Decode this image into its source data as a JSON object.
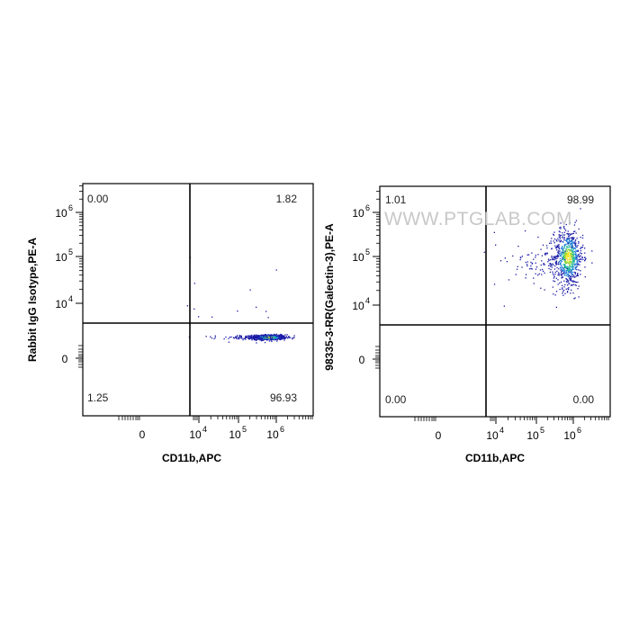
{
  "watermark": "WWW.PTGLAB.COM",
  "colors": {
    "low": "#1a1aa8",
    "mid1": "#1d7ad6",
    "mid2": "#23b8a0",
    "high1": "#8cd43a",
    "high2": "#f2e21c"
  },
  "chart_data": [
    {
      "type": "scatter",
      "subtype": "flow-cytometry-quadrant-dot-plot",
      "xlabel": "CD11b,APC",
      "ylabel": "Rabbit IgG Isotype,PE-A",
      "x_tick_labels": [
        {
          "base": "0",
          "exp": ""
        },
        {
          "base": "10",
          "exp": "4"
        },
        {
          "base": "10",
          "exp": "5"
        },
        {
          "base": "10",
          "exp": "6"
        }
      ],
      "y_tick_labels": [
        {
          "base": "0",
          "exp": ""
        },
        {
          "base": "10",
          "exp": "4"
        },
        {
          "base": "10",
          "exp": "5"
        },
        {
          "base": "10",
          "exp": "6"
        }
      ],
      "quadrants": {
        "upper_left": "0.00",
        "upper_right": "1.82",
        "lower_left": "1.25",
        "lower_right": "96.93"
      },
      "population": [
        {
          "x_log": 5.8,
          "y_log": 2.6,
          "spread_x": 0.22,
          "spread_y": 0.16,
          "count": 650
        },
        {
          "x_log": 5.25,
          "y_log": 2.55,
          "spread_x": 0.45,
          "spread_y": 0.15,
          "count": 90
        }
      ]
    },
    {
      "type": "scatter",
      "subtype": "flow-cytometry-quadrant-dot-plot",
      "xlabel": "CD11b,APC",
      "ylabel": "98335-3-RR(Galectin-3),PE-A",
      "x_tick_labels": [
        {
          "base": "0",
          "exp": ""
        },
        {
          "base": "10",
          "exp": "4"
        },
        {
          "base": "10",
          "exp": "5"
        },
        {
          "base": "10",
          "exp": "6"
        }
      ],
      "y_tick_labels": [
        {
          "base": "0",
          "exp": ""
        },
        {
          "base": "10",
          "exp": "4"
        },
        {
          "base": "10",
          "exp": "5"
        },
        {
          "base": "10",
          "exp": "6"
        }
      ],
      "quadrants": {
        "upper_left": "1.01",
        "upper_right": "98.99",
        "lower_left": "0.00",
        "lower_right": "0.00"
      },
      "population": [
        {
          "x_log": 5.85,
          "y_log": 5.0,
          "spread_x": 0.2,
          "spread_y": 0.32,
          "count": 700
        },
        {
          "x_log": 5.2,
          "y_log": 4.9,
          "spread_x": 0.45,
          "spread_y": 0.25,
          "count": 110
        }
      ]
    }
  ]
}
